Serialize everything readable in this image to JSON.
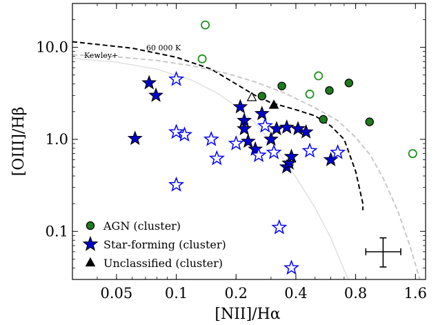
{
  "chart_data": {
    "type": "scatter",
    "xlabel": "[NII]/Hα",
    "ylabel": "[OIII]/Hβ",
    "xscale": "log",
    "yscale": "log",
    "xlim": [
      0.03,
      1.8
    ],
    "ylim": [
      0.03,
      30
    ],
    "x_ticks": [
      "0.05",
      "0.1",
      "0.2",
      "0.4",
      "0.8",
      "1.6"
    ],
    "x_tick_values": [
      0.05,
      0.1,
      0.2,
      0.4,
      0.8,
      1.6
    ],
    "y_ticks": [
      "0.1",
      "1.0",
      "10.0"
    ],
    "y_tick_values": [
      0.1,
      1.0,
      10.0
    ],
    "legend_position": "lower-left",
    "annotations": {
      "kewley_label": "Kewley+",
      "temp_label": "60 000 K"
    },
    "series": [
      {
        "name": "AGN (cluster)",
        "marker": "circle",
        "filled": true,
        "color": "#1f7a1f",
        "x": [
          0.27,
          0.34,
          0.55,
          0.59,
          0.74,
          0.94
        ],
        "y": [
          2.95,
          3.8,
          1.65,
          3.4,
          4.1,
          1.55
        ]
      },
      {
        "name": "",
        "marker": "circle",
        "filled": false,
        "color": "#1f8f1f",
        "x": [
          0.135,
          0.14,
          0.47,
          0.52,
          1.55
        ],
        "y": [
          7.5,
          17.5,
          3.1,
          4.9,
          0.7
        ]
      },
      {
        "name": "Star-forming (cluster)",
        "marker": "star",
        "filled": true,
        "color": "#0000cc",
        "x": [
          0.062,
          0.073,
          0.079,
          0.21,
          0.22,
          0.22,
          0.23,
          0.25,
          0.27,
          0.3,
          0.32,
          0.36,
          0.36,
          0.37,
          0.38,
          0.41,
          0.45,
          0.6
        ],
        "y": [
          1.02,
          4.1,
          3.0,
          2.25,
          1.6,
          1.3,
          0.95,
          0.78,
          1.9,
          1.0,
          1.3,
          1.35,
          0.5,
          0.55,
          0.65,
          1.3,
          1.2,
          0.6
        ]
      },
      {
        "name": "",
        "marker": "star",
        "filled": false,
        "color": "#0000ff",
        "x": [
          0.1,
          0.1,
          0.1,
          0.11,
          0.15,
          0.16,
          0.2,
          0.26,
          0.28,
          0.31,
          0.33,
          0.38,
          0.47,
          0.65
        ],
        "y": [
          4.5,
          1.2,
          0.32,
          1.12,
          1.0,
          0.62,
          0.9,
          0.67,
          1.4,
          0.72,
          0.11,
          0.04,
          0.75,
          0.72
        ]
      },
      {
        "name": "Unclassified (cluster)",
        "marker": "triangle",
        "filled": true,
        "color": "#000000",
        "x": [
          0.31
        ],
        "y": [
          2.35
        ]
      },
      {
        "name": "",
        "marker": "triangle",
        "filled": false,
        "color": "#000000",
        "x": [
          0.24
        ],
        "y": [
          2.85
        ]
      }
    ],
    "curves": [
      {
        "label": "60 000 K",
        "style": "dashed",
        "color": "#000000",
        "x": [
          0.03,
          0.06,
          0.1,
          0.15,
          0.2,
          0.25,
          0.3,
          0.4,
          0.5,
          0.6,
          0.7,
          0.8,
          0.87,
          0.87
        ],
        "y": [
          11.5,
          9.8,
          7.8,
          5.8,
          4.0,
          3.0,
          2.5,
          2.1,
          1.8,
          1.4,
          1.0,
          0.45,
          0.2,
          0.17
        ]
      },
      {
        "label": "Kewley+",
        "style": "dashed",
        "color": "#c8c8c8",
        "x": [
          0.03,
          0.05,
          0.08,
          0.12,
          0.18,
          0.25,
          0.35,
          0.5,
          0.65,
          0.8,
          0.95,
          1.1,
          1.3,
          1.5,
          1.7
        ],
        "y": [
          8.3,
          7.9,
          7.2,
          6.3,
          5.2,
          4.2,
          3.2,
          2.2,
          1.6,
          1.05,
          0.67,
          0.38,
          0.17,
          0.07,
          0.028
        ]
      },
      {
        "label": "",
        "style": "solid",
        "color": "#dcdcdc",
        "x": [
          0.03,
          0.05,
          0.08,
          0.12,
          0.16,
          0.2,
          0.25,
          0.3,
          0.36,
          0.42,
          0.5,
          0.6,
          0.7,
          0.75
        ],
        "y": [
          7.6,
          6.9,
          5.8,
          4.4,
          3.2,
          2.3,
          1.5,
          0.93,
          0.55,
          0.33,
          0.18,
          0.085,
          0.038,
          0.028
        ]
      }
    ],
    "error_bar": {
      "x": 1.1,
      "y": 0.06,
      "x_range": [
        0.9,
        1.35
      ],
      "y_range": [
        0.041,
        0.085
      ]
    }
  }
}
